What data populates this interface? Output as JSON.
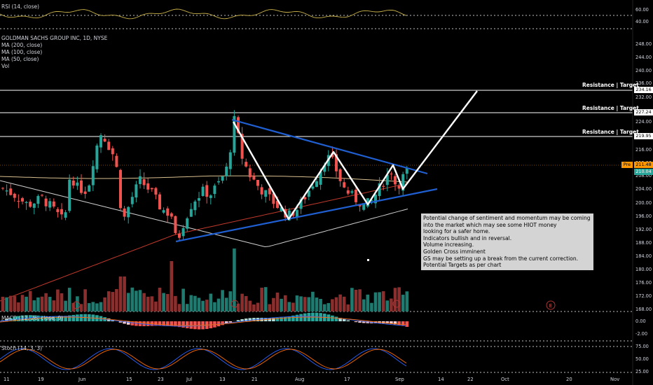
{
  "colors": {
    "bg": "#000000",
    "up": "#26a69a",
    "down": "#ef5350",
    "grid": "#bfbfbf",
    "trend": "#1f5fd1",
    "pattern": "#ffffff",
    "ma50": "#c0392b",
    "ma100": "#d8c08f",
    "ma200": "#cfcfcf",
    "rsi": "#c9b24a",
    "macd_line": "#2962ff",
    "signal_line": "#ff6d00",
    "stoch_k": "#2962ff",
    "stoch_d": "#ff6d00"
  },
  "legend": {
    "symbol": "GOLDMAN SACHS GROUP INC, 1D, NYSE",
    "ma200": "MA (200, close)",
    "ma100": "MA (100, close)",
    "ma50": "MA (50, close)",
    "vol": "Vol"
  },
  "rsi_panel": {
    "label": "RSI (14, close)",
    "ticks": [
      "60.00",
      "40.00"
    ]
  },
  "macd_panel": {
    "label": "MACD (12, 26, close, 9)",
    "ticks": [
      "0.00",
      "-2.00"
    ]
  },
  "stoch_panel": {
    "label": "Stoch (14, 3, 3)",
    "ticks": [
      "75.00",
      "50.00",
      "25.00"
    ]
  },
  "price_axis": {
    "ticks": [
      "248.00",
      "244.00",
      "240.00",
      "236.00",
      "232.00",
      "224.00",
      "216.00",
      "212.00",
      "208.00",
      "204.00",
      "200.00",
      "196.00",
      "192.00",
      "188.00",
      "184.00",
      "180.00",
      "176.00",
      "172.00",
      "168.00"
    ],
    "markers": {
      "r1": "234.16",
      "r2": "227.24",
      "r3": "219.95",
      "pre": "Pre",
      "last_a": "211.48",
      "last_b": "210.04"
    }
  },
  "time_axis": {
    "ticks": [
      "11",
      "19",
      "Jun",
      "15",
      "23",
      "Jul",
      "13",
      "21",
      "Aug",
      "17",
      "Sep",
      "14",
      "22",
      "Oct",
      "20",
      "Nov"
    ]
  },
  "resistance_labels": [
    "Resistance | Target",
    "Resistance | Target",
    "Resistance | Target"
  ],
  "annotation_lines": [
    "Potential change of sentiment and momentum may be coming",
    "into the market which may see some HIOT money",
    "looking for a safer home.",
    "Indicators bullish and in reversal.",
    "Volume increasing.",
    "Golden Cross imminent",
    "GS may be setting up a  break from the current correction.",
    "Potential Targets as per chart"
  ],
  "earnings_marker": "E",
  "chart_data": {
    "type": "candlestick",
    "title": "GOLDMAN SACHS GROUP INC, 1D, NYSE",
    "ylim": [
      168,
      250
    ],
    "resistance_targets": [
      234.16,
      227.24,
      219.95
    ],
    "last_price": 210.04,
    "indicators": [
      "MA (200, close)",
      "MA (100, close)",
      "MA (50, close)",
      "Vol",
      "RSI (14, close)",
      "MACD (12, 26, close, 9)",
      "Stoch (14, 3, 3)"
    ]
  }
}
